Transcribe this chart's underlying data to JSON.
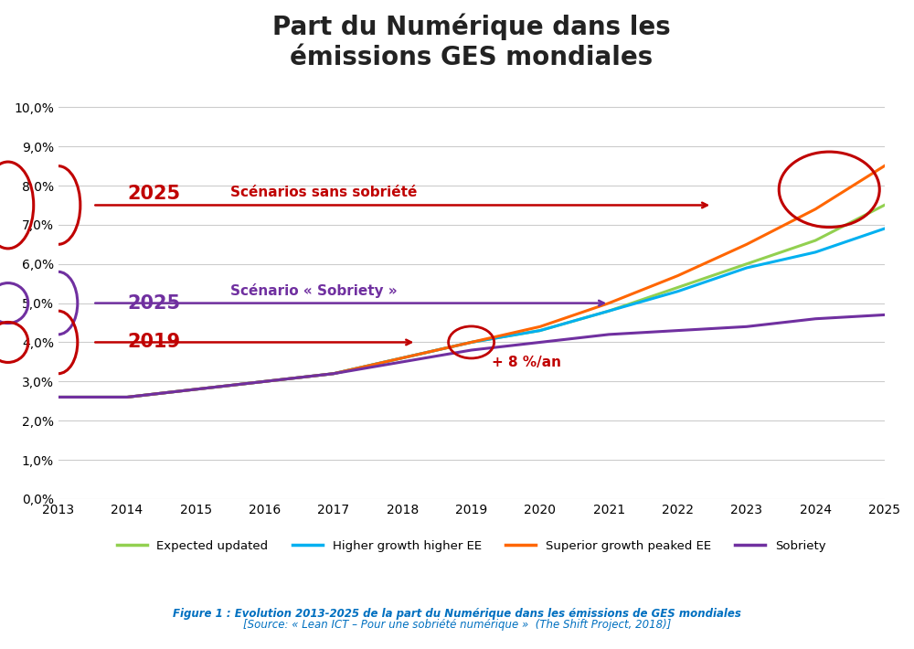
{
  "title": "Part du Numérique dans les\némissions GES mondiales",
  "ylim": [
    0.0,
    0.105
  ],
  "xlim": [
    2013,
    2025
  ],
  "yticks": [
    0.0,
    0.01,
    0.02,
    0.03,
    0.04,
    0.05,
    0.06,
    0.07,
    0.08,
    0.09,
    0.1
  ],
  "ytick_labels": [
    "0,0%",
    "1,0%",
    "2,0%",
    "3,0%",
    "4,0%",
    "5,0%",
    "6,0%",
    "7,0%",
    "8,0%",
    "9,0%",
    "10,0%"
  ],
  "xticks": [
    2013,
    2014,
    2015,
    2016,
    2017,
    2018,
    2019,
    2020,
    2021,
    2022,
    2023,
    2024,
    2025
  ],
  "bg_color": "#ffffff",
  "grid_color": "#cccccc",
  "years": [
    2013,
    2014,
    2015,
    2016,
    2017,
    2018,
    2019,
    2020,
    2021,
    2022,
    2023,
    2024,
    2025
  ],
  "expected_updated": [
    0.026,
    0.026,
    0.028,
    0.03,
    0.032,
    0.036,
    0.04,
    0.043,
    0.048,
    0.054,
    0.06,
    0.066,
    0.075
  ],
  "higher_growth_higher_ee": [
    0.026,
    0.026,
    0.028,
    0.03,
    0.032,
    0.036,
    0.04,
    0.043,
    0.048,
    0.053,
    0.059,
    0.063,
    0.069
  ],
  "superior_growth_peaked_ee": [
    0.026,
    0.026,
    0.028,
    0.03,
    0.032,
    0.036,
    0.04,
    0.044,
    0.05,
    0.057,
    0.065,
    0.074,
    0.085
  ],
  "sobriety": [
    0.026,
    0.026,
    0.028,
    0.03,
    0.032,
    0.035,
    0.038,
    0.04,
    0.042,
    0.043,
    0.044,
    0.046,
    0.047
  ],
  "color_expected": "#92d050",
  "color_higher": "#00b0f0",
  "color_superior": "#ff6600",
  "color_sobriety": "#7030a0",
  "legend_labels": [
    "Expected updated",
    "Higher growth higher EE",
    "Superior growth peaked EE",
    "Sobriety"
  ],
  "annotation_sans_sobriety_text": "Scénarios sans sobriété",
  "annotation_sobriety_text": "Scénario « Sobriety »",
  "annotation_8pct_text": "+ 8 %/an",
  "figure_caption_line1": "Figure 1 : Evolution 2013-2025 de la part du Numérique dans les émissions de GES mondiales",
  "figure_caption_line2": "[Source: « Lean ICT – Pour une sobriété numérique »  (The Shift Project, 2018)]",
  "caption_color": "#0070c0",
  "red_color": "#c00000",
  "purple_color": "#7030a0"
}
